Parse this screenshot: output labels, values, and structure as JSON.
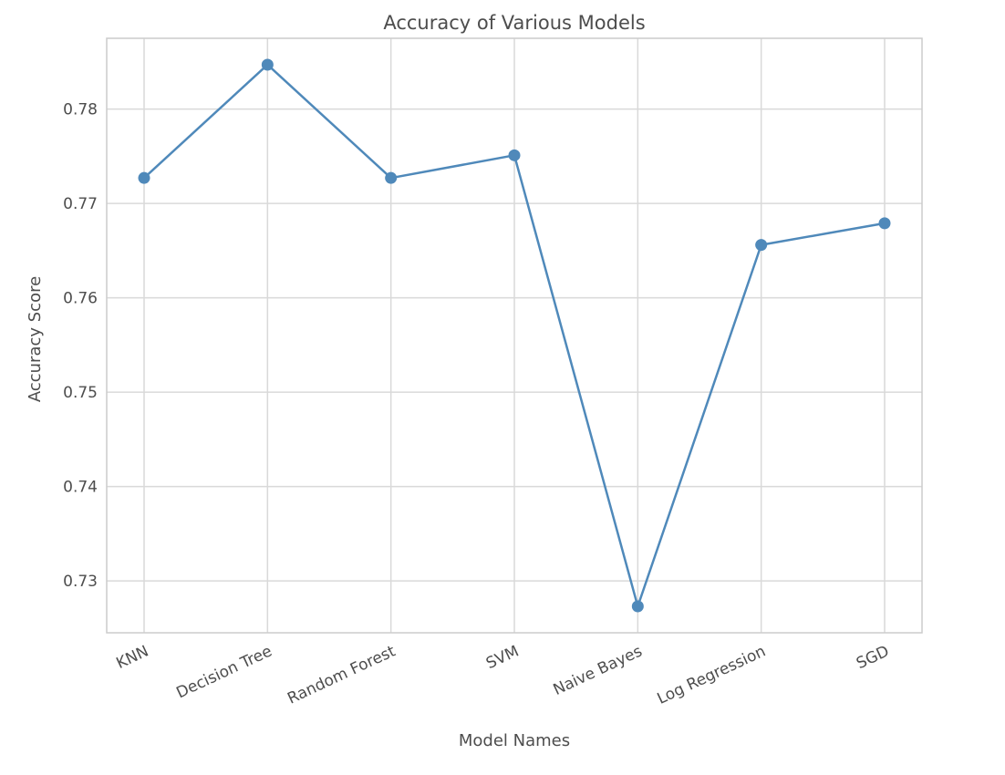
{
  "chart_data": {
    "type": "line",
    "title": "Accuracy of Various Models",
    "xlabel": "Model Names",
    "ylabel": "Accuracy Score",
    "categories": [
      "KNN",
      "Decision Tree",
      "Random Forest",
      "SVM",
      "Naive Bayes",
      "Log Regression",
      "SGD"
    ],
    "series": [
      {
        "values": [
          0.7727,
          0.7847,
          0.7727,
          0.7751,
          0.7273,
          0.7656,
          0.7679
        ]
      }
    ],
    "yticks": [
      0.73,
      0.74,
      0.75,
      0.76,
      0.77,
      0.78
    ],
    "ytick_labels": [
      "0.73",
      "0.74",
      "0.75",
      "0.76",
      "0.77",
      "0.78"
    ],
    "ylim": [
      0.7245,
      0.7875
    ],
    "grid": true,
    "line_color": "#4f89ba",
    "grid_color": "#d9d9d9",
    "spine_color": "#cccccc",
    "text_color": "#4d4d4d"
  }
}
